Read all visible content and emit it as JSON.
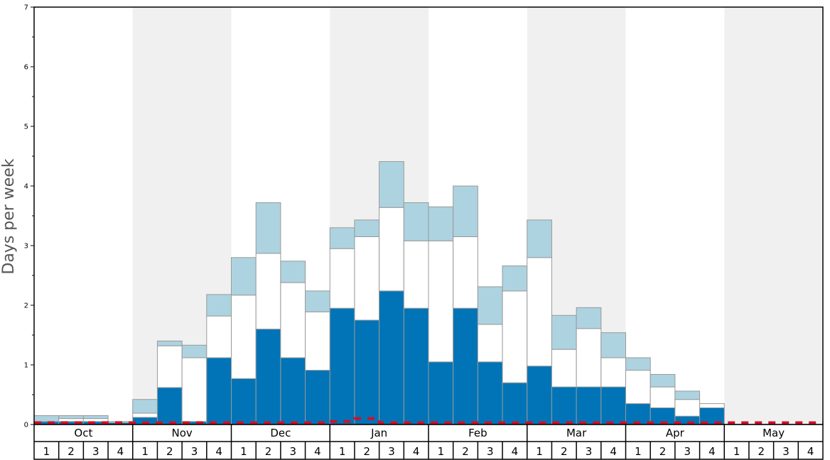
{
  "chart_data": {
    "type": "bar",
    "ylabel": "Days per week",
    "ylim": [
      0,
      7
    ],
    "yticks": [
      "0",
      "1",
      "2",
      "3",
      "4",
      "5",
      "6",
      "7"
    ],
    "months": [
      "Oct",
      "Nov",
      "Dec",
      "Jan",
      "Feb",
      "Mar",
      "Apr",
      "May"
    ],
    "week_labels": [
      "1",
      "2",
      "3",
      "4"
    ],
    "shaded_months": [
      "Nov",
      "Jan",
      "Mar",
      "May"
    ],
    "colors": {
      "dark": "#0074b7",
      "mid": "#ffffff",
      "light": "#add3e0",
      "shade": "#f0f0f0",
      "line": "#d0102a",
      "bar_edge": "#999999"
    },
    "series": [
      {
        "name": "dark",
        "values": [
          0.05,
          0.05,
          0.05,
          0.03,
          0.12,
          0.62,
          0.05,
          1.12,
          0.77,
          1.6,
          1.12,
          0.91,
          1.95,
          1.75,
          2.24,
          1.95,
          1.05,
          1.95,
          1.05,
          0.7,
          0.98,
          0.63,
          0.63,
          0.63,
          0.35,
          0.28,
          0.14,
          0.28,
          0,
          0,
          0,
          0
        ]
      },
      {
        "name": "mid",
        "values": [
          0.0,
          0.05,
          0.05,
          0.0,
          0.07,
          0.7,
          1.07,
          0.7,
          1.4,
          1.27,
          1.26,
          0.98,
          1.0,
          1.4,
          1.4,
          1.13,
          2.03,
          1.2,
          0.63,
          1.54,
          1.82,
          0.63,
          0.98,
          0.49,
          0.56,
          0.35,
          0.28,
          0.07,
          0,
          0,
          0,
          0
        ]
      },
      {
        "name": "light",
        "values": [
          0.1,
          0.05,
          0.05,
          0.02,
          0.23,
          0.08,
          0.21,
          0.36,
          0.63,
          0.85,
          0.36,
          0.35,
          0.35,
          0.28,
          0.77,
          0.64,
          0.57,
          0.85,
          0.63,
          0.42,
          0.63,
          0.57,
          0.35,
          0.42,
          0.21,
          0.21,
          0.14,
          0.0,
          0,
          0,
          0,
          0
        ]
      }
    ],
    "reference_line": [
      0.03,
      0.03,
      0.03,
      0.03,
      0.03,
      0.03,
      0.03,
      0.03,
      0.03,
      0.03,
      0.03,
      0.03,
      0.05,
      0.1,
      0.03,
      0.03,
      0.03,
      0.03,
      0.03,
      0.03,
      0.03,
      0.03,
      0.03,
      0.03,
      0.03,
      0.03,
      0.03,
      0.03,
      0.03,
      0.03,
      0.03,
      0.03
    ]
  }
}
